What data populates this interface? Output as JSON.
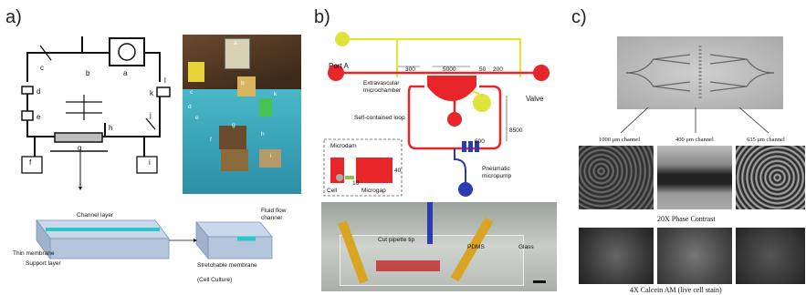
{
  "panel_a": {
    "letter": "a)",
    "schematic_labels": {
      "a": "a",
      "b": "b",
      "c": "c",
      "d": "d",
      "e": "e",
      "f": "f",
      "g": "g",
      "h": "h",
      "i": "i",
      "j": "j",
      "k": "k",
      "l": "l"
    },
    "photo_labels": [
      "a",
      "b",
      "c",
      "d",
      "e",
      "f",
      "g",
      "h",
      "i",
      "k"
    ],
    "chip_labels": {
      "channel_layer": "Channel layer",
      "thin_membrane": "Thin membrane",
      "support_layer": "Support layer",
      "fluid_flow_channel": "Fluid flow channel",
      "stretchable_membrane": "Stretchable membrane",
      "cell_culture": "(Cell Culture)"
    }
  },
  "panel_b": {
    "letter": "b)",
    "labels": {
      "port_a": "Port A",
      "extravascular": "Extravascular microchamber",
      "valve": "Valve",
      "self_contained": "Self-contained loop",
      "microdam": "Microdam",
      "cell": "Cell",
      "microgap": "Microgap",
      "pneumatic": "Pneumatic micropump",
      "cut_pipette": "Cut pipette tip",
      "pdms": "PDMS",
      "glass": "Glass"
    },
    "dimensions": {
      "d300": "300",
      "d5000": "5000",
      "d50": "50",
      "d200": "200",
      "d8500": "8500",
      "d600": "600",
      "d40": "40",
      "d10": "10"
    },
    "colors": {
      "channel": "#e8262a",
      "control": "#dfe33a",
      "pump": "#2b3bb0"
    }
  },
  "panel_c": {
    "letter": "c)",
    "channel_labels": [
      "1000 μm channel",
      "400 μm channel",
      "635 μm channel"
    ],
    "row_label_1": "20X Phase Contrast",
    "row_label_2": "4X Calcein AM (live cell stain)"
  }
}
